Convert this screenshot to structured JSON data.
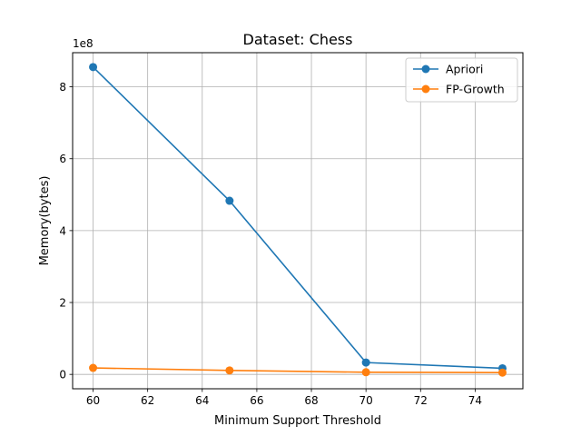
{
  "chart_data": {
    "type": "line",
    "title": "Dataset: Chess",
    "xlabel": "Minimum Support Threshold",
    "ylabel": "Memory(bytes)",
    "y_offset_label": "1e8",
    "xlim": [
      59.25,
      75.75
    ],
    "ylim": [
      -0.4,
      8.95
    ],
    "y_scale": 100000000,
    "x_ticks": [
      60,
      62,
      64,
      66,
      68,
      70,
      72,
      74
    ],
    "y_ticks": [
      0,
      2,
      4,
      6,
      8
    ],
    "grid": true,
    "legend_position": "upper right",
    "x": [
      60,
      65,
      70,
      75
    ],
    "series": [
      {
        "name": "Apriori",
        "color": "#1f77b4",
        "values": [
          8.55,
          4.83,
          0.33,
          0.17
        ]
      },
      {
        "name": "FP-Growth",
        "color": "#ff7f0e",
        "values": [
          0.18,
          0.11,
          0.06,
          0.05
        ]
      }
    ]
  }
}
